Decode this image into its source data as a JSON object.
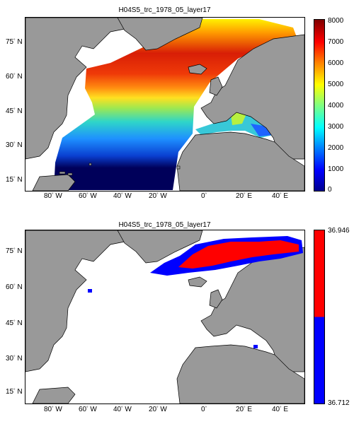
{
  "panel_top": {
    "title": "H04S5_trc_1978_05_layer17",
    "colorbar": {
      "ticks": [
        "8000",
        "7000",
        "6000",
        "5000",
        "4000",
        "3000",
        "2000",
        "1000",
        "0"
      ],
      "colormap": "jet"
    },
    "lat_ticks": [
      "75",
      "60",
      "45",
      "30",
      "15"
    ],
    "lon_ticks": [
      "80",
      "60",
      "40",
      "20",
      "0",
      "20",
      "40"
    ],
    "lon_hemis": [
      "W",
      "W",
      "W",
      "W",
      "",
      "E",
      "E"
    ],
    "lat_hemi": "N"
  },
  "panel_bottom": {
    "title": "H04S5_trc_1978_05_layer17",
    "colorbar": {
      "max_label": "36.946",
      "min_label": "36.712",
      "colors": [
        "#ff0000",
        "#0000ff"
      ]
    },
    "lat_ticks": [
      "75",
      "60",
      "45",
      "30",
      "15"
    ],
    "lon_ticks": [
      "80",
      "60",
      "40",
      "20",
      "0",
      "20",
      "40"
    ],
    "lon_hemis": [
      "W",
      "W",
      "W",
      "W",
      "",
      "E",
      "E"
    ],
    "lat_hemi": "N"
  },
  "colors": {
    "land": "#999999",
    "ocean_missing": "#ffffff",
    "deep_blue": "#000066",
    "red": "#ff0000",
    "blue": "#0000ff"
  }
}
